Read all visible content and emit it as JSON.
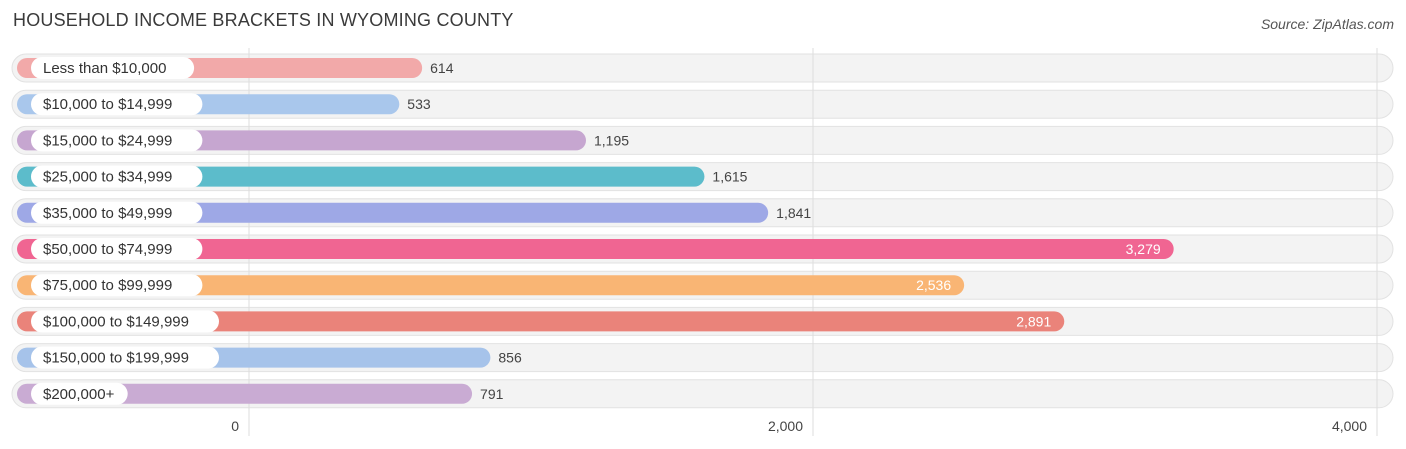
{
  "page": {
    "title": "HOUSEHOLD INCOME BRACKETS IN WYOMING COUNTY",
    "source": "Source: ZipAtlas.com"
  },
  "chart_data": {
    "type": "bar",
    "orientation": "horizontal",
    "title": "HOUSEHOLD INCOME BRACKETS IN WYOMING COUNTY",
    "categories": [
      "Less than $10,000",
      "$10,000 to $14,999",
      "$15,000 to $24,999",
      "$25,000 to $34,999",
      "$35,000 to $49,999",
      "$50,000 to $74,999",
      "$75,000 to $99,999",
      "$100,000 to $149,999",
      "$150,000 to $199,999",
      "$200,000+"
    ],
    "values": [
      614,
      533,
      1195,
      1615,
      1841,
      3279,
      2536,
      2891,
      856,
      791
    ],
    "value_labels": [
      "614",
      "533",
      "1,195",
      "1,615",
      "1,841",
      "3,279",
      "2,536",
      "2,891",
      "856",
      "791"
    ],
    "colors": [
      "#f2a9a9",
      "#a9c7ec",
      "#c6a6d0",
      "#5cbccb",
      "#9ea8e6",
      "#f06592",
      "#f9b574",
      "#ea837a",
      "#a6c3ea",
      "#c9abd3"
    ],
    "xlim": [
      0,
      4000
    ],
    "x_ticks": [
      0,
      2000,
      4000
    ],
    "x_tick_labels": [
      "0",
      "2,000",
      "4,000"
    ],
    "grid": true,
    "xlabel": "",
    "ylabel": ""
  }
}
